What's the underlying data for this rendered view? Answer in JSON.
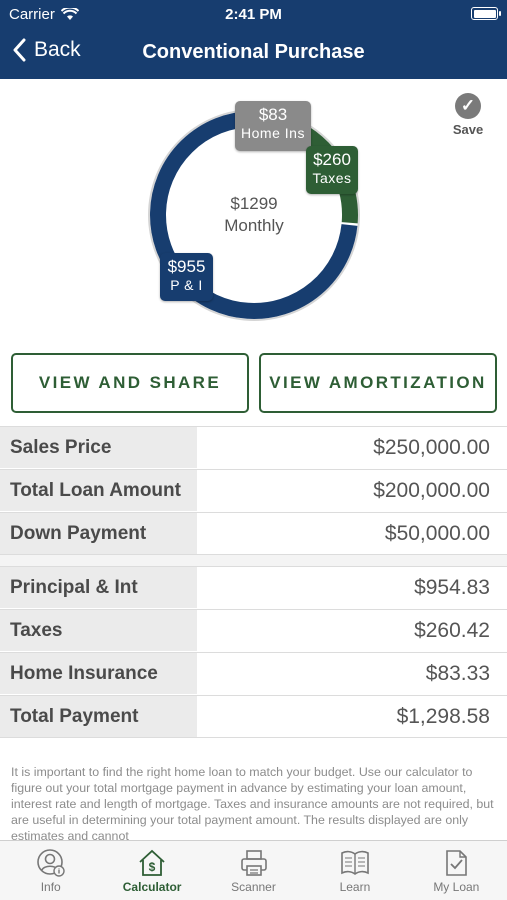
{
  "status_bar": {
    "carrier": "Carrier",
    "time": "2:41 PM"
  },
  "nav": {
    "back_label": "Back",
    "title": "Conventional Purchase"
  },
  "save": {
    "label": "Save"
  },
  "donut": {
    "center_amount": "$1299",
    "center_label": "Monthly",
    "segments": [
      {
        "value": "$955",
        "label": "P & I",
        "amount": 954.83,
        "color": "#173d6f"
      },
      {
        "value": "$260",
        "label": "Taxes",
        "amount": 260.42,
        "color": "#2e5e35"
      },
      {
        "value": "$83",
        "label": "Home Ins",
        "amount": 83.33,
        "color": "#8a8a8a"
      }
    ]
  },
  "buttons": {
    "view_share": "VIEW AND SHARE",
    "view_amortization": "VIEW AMORTIZATION"
  },
  "loan_rows": [
    {
      "label": "Sales Price",
      "value": "$250,000.00"
    },
    {
      "label": "Total Loan Amount",
      "value": "$200,000.00"
    },
    {
      "label": "Down Payment",
      "value": "$50,000.00"
    }
  ],
  "payment_rows": [
    {
      "label": "Principal & Int",
      "value": "$954.83"
    },
    {
      "label": "Taxes",
      "value": "$260.42"
    },
    {
      "label": "Home Insurance",
      "value": "$83.33"
    },
    {
      "label": "Total Payment",
      "value": "$1,298.58"
    }
  ],
  "disclaimer": "It is important to find the right home loan to match your budget. Use our calculator to figure out your total mortgage payment in advance by estimating your loan amount, interest rate and length of mortgage. Taxes and insurance amounts are not required, but are useful in determining your total payment amount.  The results displayed are only estimates and cannot",
  "tabs": [
    {
      "label": "Info",
      "icon": "info-person-icon",
      "active": false
    },
    {
      "label": "Calculator",
      "icon": "calculator-house-icon",
      "active": true
    },
    {
      "label": "Scanner",
      "icon": "printer-icon",
      "active": false
    },
    {
      "label": "Learn",
      "icon": "book-icon",
      "active": false
    },
    {
      "label": "My Loan",
      "icon": "document-check-icon",
      "active": false
    }
  ],
  "colors": {
    "header": "#173d6f",
    "accent_green": "#2e5e35",
    "gray": "#8a8a8a"
  }
}
